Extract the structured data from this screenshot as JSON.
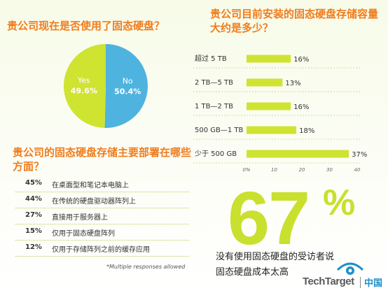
{
  "q1": "贵公司现在是否使用了固态硬盘？",
  "q2": "贵公司目前安装的固态硬盘存储容量大约是多少？",
  "q3": "贵公司的固态硬盘存储主要部署在哪些方面？",
  "chart_data": [
    {
      "type": "pie",
      "slices": [
        {
          "label": "Yes",
          "value": 49.6,
          "value_label": "49.6%",
          "color": "#cfe331"
        },
        {
          "label": "No",
          "value": 50.4,
          "value_label": "50.4%",
          "color": "#4fb3e0"
        }
      ]
    },
    {
      "type": "bar",
      "orientation": "horizontal",
      "categories": [
        "超过 5 TB",
        "2 TB—5 TB",
        "1 TB—2 TB",
        "500 GB—1 TB",
        "少于 500 GB"
      ],
      "values": [
        16,
        13,
        16,
        18,
        37
      ],
      "value_labels": [
        "16%",
        "13%",
        "16%",
        "18%",
        "37%"
      ],
      "xlim": [
        0,
        40
      ],
      "xticks": [
        "0%",
        "10",
        "20",
        "30",
        "40"
      ],
      "grid": false,
      "bar_color": "#cfe331"
    }
  ],
  "list": [
    {
      "pct": "45%",
      "text": "在桌面型和笔记本电脑上"
    },
    {
      "pct": "44%",
      "text": "在传统的硬盘驱动器阵列上"
    },
    {
      "pct": "27%",
      "text": "直接用于服务器上"
    },
    {
      "pct": "15%",
      "text": "仅用于固态硬盘阵列"
    },
    {
      "pct": "12%",
      "text": "仅用于存储阵列之前的缓存应用"
    }
  ],
  "note": "*Multiple responses allowed",
  "big": {
    "number": "67",
    "percent": "%"
  },
  "caption": [
    "没有使用固态硬盘的受访者说",
    "固态硬盘成本太高"
  ],
  "brand": {
    "name": "TechTarget",
    "region": "中国"
  },
  "colors": {
    "accent": "#f07c1d",
    "green": "#cfe331",
    "blue": "#4fb3e0"
  }
}
